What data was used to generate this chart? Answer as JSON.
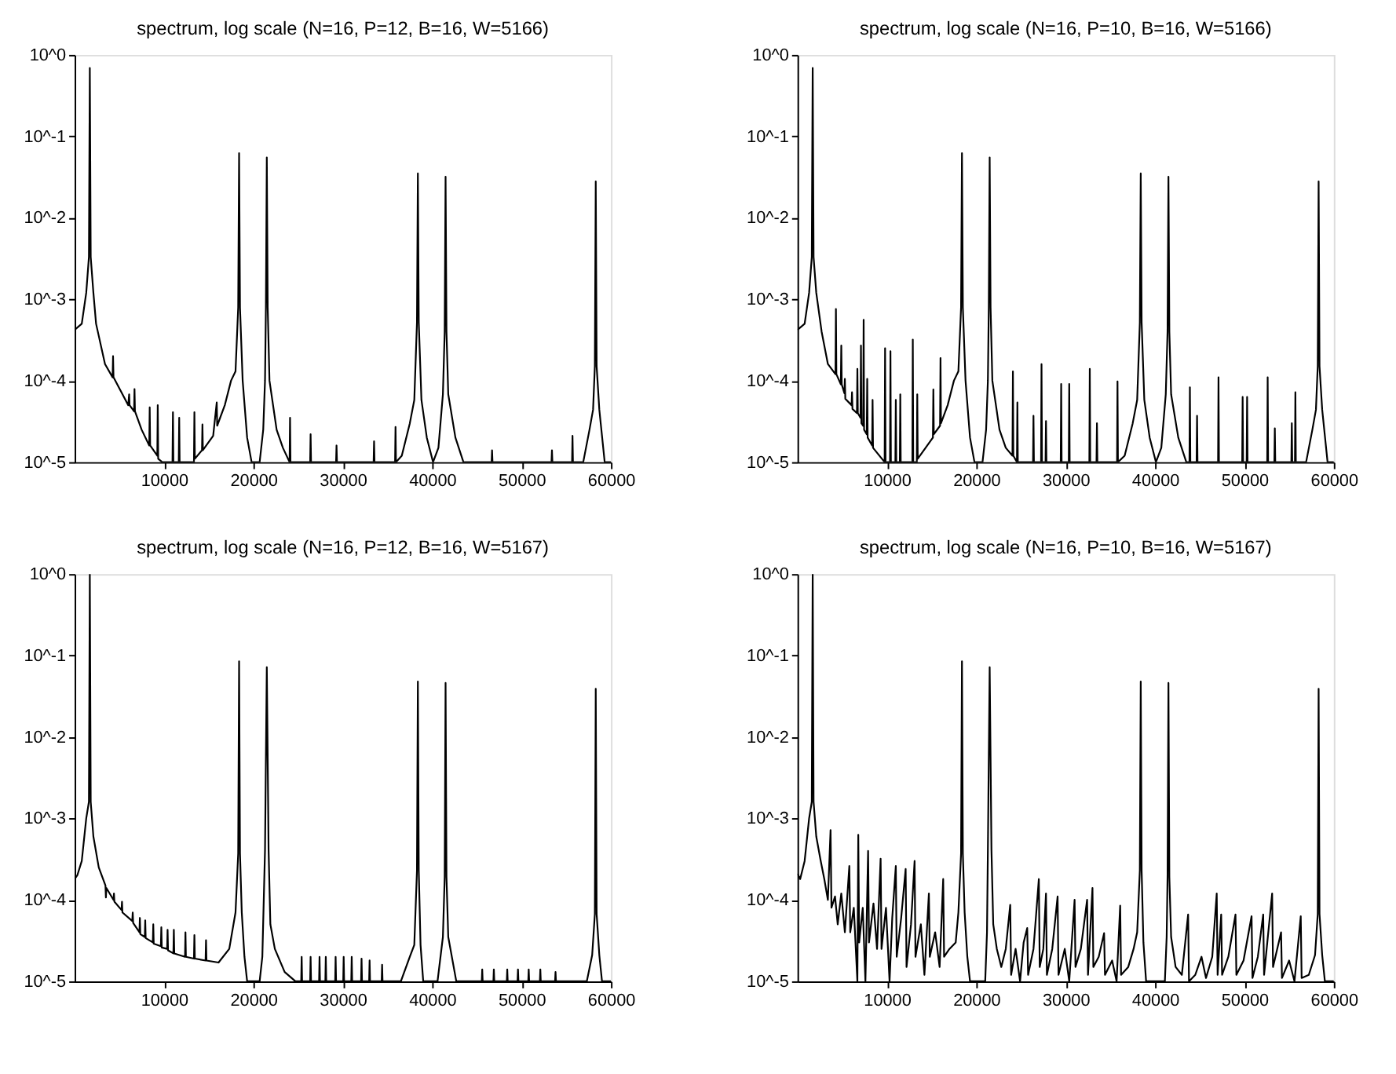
{
  "chart_data": [
    {
      "type": "line",
      "title": "spectrum, log scale (N=16, P=12, B=16, W=5166)",
      "color": "#000000",
      "log": "y",
      "grid": false,
      "line_style": "solid",
      "xlim": [
        0,
        60000
      ],
      "xticks": [
        10000,
        20000,
        30000,
        40000,
        50000,
        60000
      ],
      "ylim": [
        1e-05,
        1
      ],
      "yticks": [
        {
          "value": 1,
          "label": "10^0"
        },
        {
          "value": 0.1,
          "label": "10^-1"
        },
        {
          "value": 0.01,
          "label": "10^-2"
        },
        {
          "value": 0.001,
          "label": "10^-3"
        },
        {
          "value": 0.0001,
          "label": "10^-4"
        },
        {
          "value": 1e-05,
          "label": "10^-5"
        }
      ],
      "x": [
        0,
        800,
        1300,
        1600,
        1700,
        1800,
        2100,
        2400,
        3400,
        4250,
        4300,
        4350,
        6000,
        6100,
        6150,
        6650,
        6700,
        6750,
        7500,
        8350,
        8400,
        8450,
        9250,
        9300,
        9350,
        9800,
        10950,
        11000,
        11050,
        11650,
        11700,
        11750,
        13350,
        13400,
        13450,
        14250,
        14300,
        14350,
        15500,
        15900,
        15950,
        16800,
        17500,
        18000,
        18300,
        18400,
        18500,
        18800,
        19300,
        19800,
        20700,
        21100,
        21300,
        21400,
        21500,
        21600,
        21800,
        22600,
        23300,
        24050,
        24100,
        24150,
        26350,
        26400,
        26450,
        29250,
        29300,
        29350,
        33450,
        33500,
        33550,
        35850,
        35900,
        35950,
        36600,
        37500,
        38000,
        38300,
        38400,
        38500,
        38800,
        39400,
        40100,
        40700,
        41200,
        41400,
        41500,
        41600,
        41800,
        42600,
        43500,
        46650,
        46700,
        46750,
        53350,
        53400,
        53450,
        55650,
        55700,
        55750,
        56900,
        57600,
        58000,
        58200,
        58300,
        58400,
        58700,
        59300,
        60000
      ],
      "values": [
        0.00042,
        0.0005,
        0.0012,
        0.0033,
        0.69,
        0.0033,
        0.0012,
        0.0005,
        0.00016,
        0.00011,
        0.0002,
        0.00011,
        5e-05,
        6.8e-05,
        5e-05,
        4.2e-05,
        7.9e-05,
        4.2e-05,
        2.5e-05,
        1.6e-05,
        4.7e-05,
        1.6e-05,
        1.2e-05,
        5e-05,
        1.1e-05,
        1e-05,
        1e-05,
        4.1e-05,
        1e-05,
        1e-05,
        3.5e-05,
        1e-05,
        1e-05,
        4.1e-05,
        1.1e-05,
        1.4e-05,
        2.9e-05,
        1.4e-05,
        2.1e-05,
        5.4e-05,
        2.8e-05,
        5e-05,
        0.0001,
        0.00013,
        0.00079,
        0.062,
        0.00079,
        0.0001,
        2e-05,
        1e-05,
        1e-05,
        2.5e-05,
        0.0001,
        0.00079,
        0.055,
        0.00079,
        0.0001,
        2.5e-05,
        1.5e-05,
        1e-05,
        3.5e-05,
        1e-05,
        1e-05,
        2.2e-05,
        1e-05,
        1e-05,
        1.6e-05,
        1e-05,
        1e-05,
        1.8e-05,
        1e-05,
        1e-05,
        2.7e-05,
        1e-05,
        1.2e-05,
        3e-05,
        5.8e-05,
        0.00052,
        0.035,
        0.00052,
        5.8e-05,
        2e-05,
        1e-05,
        1.5e-05,
        6.8e-05,
        0.0004,
        0.032,
        0.0004,
        6.8e-05,
        2e-05,
        1e-05,
        1e-05,
        1.4e-05,
        1e-05,
        1e-05,
        1.4e-05,
        1e-05,
        1e-05,
        2.1e-05,
        1e-05,
        1e-05,
        2.5e-05,
        4.4e-05,
        0.00015,
        0.028,
        0.00015,
        4.4e-05,
        1e-05,
        1e-05
      ]
    },
    {
      "type": "line",
      "title": "spectrum, log scale (N=16, P=10, B=16, W=5166)",
      "color": "#000000",
      "log": "y",
      "grid": false,
      "line_style": "solid",
      "xlim": [
        0,
        60000
      ],
      "xticks": [
        10000,
        20000,
        30000,
        40000,
        50000,
        60000
      ],
      "ylim": [
        1e-05,
        1
      ],
      "yticks": [
        {
          "value": 1,
          "label": "10^0"
        },
        {
          "value": 0.1,
          "label": "10^-1"
        },
        {
          "value": 0.01,
          "label": "10^-2"
        },
        {
          "value": 0.001,
          "label": "10^-3"
        },
        {
          "value": 0.0001,
          "label": "10^-4"
        },
        {
          "value": 1e-05,
          "label": "10^-5"
        }
      ],
      "x": [
        0,
        800,
        1300,
        1600,
        1700,
        1800,
        2100,
        2700,
        3400,
        4250,
        4300,
        4350,
        4850,
        4900,
        4950,
        5250,
        5300,
        5350,
        6050,
        6100,
        6150,
        6650,
        6700,
        6750,
        7050,
        7100,
        7150,
        7350,
        7400,
        7450,
        7750,
        7800,
        7850,
        8350,
        8400,
        8450,
        9750,
        9800,
        9850,
        10350,
        10400,
        10450,
        10950,
        11000,
        11050,
        11450,
        11500,
        11550,
        12850,
        12900,
        12950,
        13350,
        13400,
        13450,
        15150,
        15200,
        15250,
        15950,
        16000,
        16050,
        16800,
        17500,
        18000,
        18300,
        18400,
        18500,
        18800,
        19300,
        19800,
        20700,
        21100,
        21300,
        21400,
        21500,
        21600,
        21800,
        22600,
        23300,
        24050,
        24100,
        24150,
        24550,
        24600,
        24650,
        26350,
        26400,
        26450,
        27250,
        27300,
        27350,
        27750,
        27800,
        27850,
        29450,
        29500,
        29550,
        30350,
        30400,
        30450,
        32650,
        32700,
        32750,
        33450,
        33500,
        33550,
        35750,
        35800,
        35850,
        36600,
        37500,
        38000,
        38300,
        38400,
        38500,
        38800,
        39400,
        40100,
        40700,
        41200,
        41400,
        41500,
        41600,
        41800,
        42600,
        43500,
        43850,
        43900,
        43950,
        44650,
        44700,
        44750,
        47050,
        47100,
        47150,
        49750,
        49800,
        49850,
        50250,
        50300,
        50350,
        52550,
        52600,
        52650,
        53350,
        53400,
        53450,
        55250,
        55300,
        55350,
        55650,
        55700,
        55750,
        56900,
        57600,
        58000,
        58200,
        58300,
        58400,
        58700,
        59300,
        60000
      ],
      "values": [
        0.00042,
        0.0005,
        0.0012,
        0.0033,
        0.69,
        0.0033,
        0.0012,
        0.0004,
        0.00016,
        0.00012,
        0.00076,
        0.00012,
        9e-05,
        0.00027,
        9e-05,
        7e-05,
        0.000105,
        6e-05,
        5e-05,
        7.2e-05,
        4.5e-05,
        4e-05,
        0.00014,
        4e-05,
        3.5e-05,
        0.00027,
        3e-05,
        2.8e-05,
        0.00056,
        2.5e-05,
        2.2e-05,
        0.000105,
        2e-05,
        1.6e-05,
        5.8e-05,
        1.5e-05,
        1e-05,
        0.00025,
        1e-05,
        1e-05,
        0.00023,
        1e-05,
        1e-05,
        5.8e-05,
        1e-05,
        1e-05,
        6.8e-05,
        1e-05,
        1e-05,
        0.00032,
        1e-05,
        1e-05,
        6.8e-05,
        1.1e-05,
        2e-05,
        7.8e-05,
        2.2e-05,
        2.8e-05,
        0.00019,
        3e-05,
        5e-05,
        0.0001,
        0.00013,
        0.00079,
        0.062,
        0.00079,
        0.0001,
        2e-05,
        1e-05,
        1e-05,
        2.5e-05,
        0.0001,
        0.00079,
        0.055,
        0.00079,
        0.0001,
        2.5e-05,
        1.5e-05,
        1.2e-05,
        0.00013,
        1.2e-05,
        1e-05,
        5.4e-05,
        1e-05,
        1e-05,
        3.7e-05,
        1e-05,
        1e-05,
        0.00016,
        1e-05,
        1e-05,
        3.2e-05,
        1e-05,
        1e-05,
        9.1e-05,
        1e-05,
        1e-05,
        9.1e-05,
        1e-05,
        1e-05,
        0.00014,
        1e-05,
        1e-05,
        3e-05,
        1e-05,
        1e-05,
        9.8e-05,
        1e-05,
        1.2e-05,
        3e-05,
        5.8e-05,
        0.00052,
        0.035,
        0.00052,
        5.8e-05,
        2e-05,
        1e-05,
        1.5e-05,
        6.8e-05,
        0.0004,
        0.032,
        0.0004,
        6.8e-05,
        2e-05,
        1e-05,
        1e-05,
        8.3e-05,
        1e-05,
        1e-05,
        3.7e-05,
        1e-05,
        1e-05,
        0.00011,
        1e-05,
        1e-05,
        6.3e-05,
        1e-05,
        1e-05,
        6.3e-05,
        1e-05,
        1e-05,
        0.00011,
        1e-05,
        1e-05,
        2.6e-05,
        1e-05,
        1e-05,
        3e-05,
        1e-05,
        1e-05,
        7.2e-05,
        1e-05,
        1e-05,
        2.5e-05,
        4.4e-05,
        0.00015,
        0.028,
        0.00015,
        4.4e-05,
        1e-05,
        1e-05
      ]
    },
    {
      "type": "line",
      "title": "spectrum, log scale (N=16, P=12, B=16, W=5167)",
      "color": "#000000",
      "log": "y",
      "grid": false,
      "line_style": "solid",
      "xlim": [
        0,
        60000
      ],
      "xticks": [
        10000,
        20000,
        30000,
        40000,
        50000,
        60000
      ],
      "ylim": [
        1e-05,
        1
      ],
      "yticks": [
        {
          "value": 1,
          "label": "10^0"
        },
        {
          "value": 0.1,
          "label": "10^-1"
        },
        {
          "value": 0.01,
          "label": "10^-2"
        },
        {
          "value": 0.001,
          "label": "10^-3"
        },
        {
          "value": 0.0001,
          "label": "10^-4"
        },
        {
          "value": 1e-05,
          "label": "10^-5"
        }
      ],
      "x": [
        0,
        300,
        800,
        1300,
        1600,
        1700,
        1800,
        2100,
        2700,
        3450,
        3500,
        3550,
        4350,
        4400,
        4450,
        5250,
        5300,
        5350,
        6450,
        6500,
        6550,
        7250,
        7300,
        7350,
        7850,
        7900,
        7950,
        8750,
        8800,
        8850,
        9650,
        9700,
        9750,
        10350,
        10400,
        10450,
        11050,
        11100,
        11150,
        12350,
        12400,
        12450,
        13350,
        13400,
        13450,
        14650,
        14700,
        14750,
        16100,
        17300,
        18000,
        18300,
        18400,
        18500,
        18700,
        19000,
        19300,
        20700,
        21000,
        21300,
        21500,
        21700,
        21900,
        22400,
        23500,
        24700,
        25350,
        25400,
        25450,
        26350,
        26400,
        26450,
        27350,
        27400,
        27450,
        28050,
        28100,
        28150,
        29150,
        29200,
        29250,
        30050,
        30100,
        30150,
        30950,
        31000,
        31050,
        32050,
        32100,
        32150,
        32950,
        33000,
        33050,
        34350,
        34400,
        34450,
        36500,
        37500,
        38000,
        38300,
        38400,
        38500,
        38700,
        39000,
        40600,
        41200,
        41400,
        41500,
        41600,
        41800,
        42700,
        45550,
        45600,
        45650,
        46850,
        46900,
        46950,
        48350,
        48400,
        48450,
        49550,
        49600,
        49650,
        50750,
        50800,
        50850,
        52050,
        52100,
        52150,
        53750,
        53800,
        53850,
        57300,
        57900,
        58200,
        58300,
        58400,
        58700,
        59000,
        60000
      ],
      "values": [
        0.00018,
        0.0002,
        0.0003,
        0.001,
        0.0016,
        1.0,
        0.0016,
        0.0006,
        0.00025,
        0.00015,
        0.000107,
        0.00014,
        0.0001,
        0.00012,
        9.5e-05,
        7.5e-05,
        9.5e-05,
        7e-05,
        5.5e-05,
        7e-05,
        5.2e-05,
        4e-05,
        6e-05,
        3.8e-05,
        3.5e-05,
        5.6e-05,
        3.4e-05,
        3e-05,
        5e-05,
        2.9e-05,
        2.7e-05,
        4.6e-05,
        2.6e-05,
        2.5e-05,
        4.3e-05,
        2.4e-05,
        2.2e-05,
        4.3e-05,
        2.2e-05,
        2e-05,
        4e-05,
        2e-05,
        1.9e-05,
        3.7e-05,
        1.9e-05,
        1.8e-05,
        3.2e-05,
        1.8e-05,
        1.7e-05,
        2.5e-05,
        7e-05,
        0.00037,
        0.085,
        0.00037,
        7e-05,
        2e-05,
        1e-05,
        1e-05,
        2e-05,
        0.00041,
        0.072,
        0.00041,
        5e-05,
        2.5e-05,
        1.3e-05,
        1e-05,
        1e-05,
        2e-05,
        1e-05,
        1e-05,
        2e-05,
        1e-05,
        1e-05,
        2e-05,
        1e-05,
        1e-05,
        2e-05,
        1e-05,
        1e-05,
        2e-05,
        1e-05,
        1e-05,
        2e-05,
        1e-05,
        1e-05,
        2e-05,
        1e-05,
        1e-05,
        1.9e-05,
        1e-05,
        1e-05,
        1.8e-05,
        1e-05,
        1e-05,
        1.6e-05,
        1e-05,
        1e-05,
        2e-05,
        2.8e-05,
        0.00023,
        0.048,
        0.00023,
        2.8e-05,
        1e-05,
        1e-05,
        3.5e-05,
        0.00019,
        0.046,
        0.00019,
        3.5e-05,
        1e-05,
        1e-05,
        1.4e-05,
        1e-05,
        1e-05,
        1.4e-05,
        1e-05,
        1e-05,
        1.4e-05,
        1e-05,
        1e-05,
        1.4e-05,
        1e-05,
        1e-05,
        1.4e-05,
        1e-05,
        1e-05,
        1.4e-05,
        1e-05,
        1e-05,
        1.3e-05,
        1e-05,
        1e-05,
        2.1e-05,
        6.7e-05,
        0.039,
        6.7e-05,
        2.1e-05,
        1e-05,
        1e-05
      ]
    },
    {
      "type": "line",
      "title": "spectrum, log scale (N=16, P=10, B=16, W=5167)",
      "color": "#000000",
      "log": "y",
      "grid": false,
      "line_style": "solid",
      "xlim": [
        0,
        60000
      ],
      "xticks": [
        10000,
        20000,
        30000,
        40000,
        50000,
        60000
      ],
      "ylim": [
        1e-05,
        1
      ],
      "yticks": [
        {
          "value": 1,
          "label": "10^0"
        },
        {
          "value": 0.1,
          "label": "10^-1"
        },
        {
          "value": 0.01,
          "label": "10^-2"
        },
        {
          "value": 0.001,
          "label": "10^-3"
        },
        {
          "value": 0.0001,
          "label": "10^-4"
        },
        {
          "value": 1e-05,
          "label": "10^-5"
        }
      ],
      "x": [
        0,
        300,
        800,
        1300,
        1600,
        1700,
        1800,
        2100,
        2600,
        3000,
        3400,
        3700,
        3800,
        4200,
        4500,
        4900,
        5300,
        5800,
        5900,
        6300,
        6700,
        6800,
        6900,
        7300,
        7600,
        7900,
        8000,
        8500,
        8900,
        9300,
        9400,
        9900,
        10300,
        10600,
        11000,
        11100,
        11600,
        12100,
        12200,
        12700,
        13100,
        13200,
        13800,
        14200,
        14700,
        14800,
        15400,
        15900,
        16300,
        16400,
        17000,
        17700,
        18000,
        18300,
        18400,
        18500,
        18700,
        19000,
        19300,
        21000,
        21200,
        21300,
        21500,
        21700,
        21900,
        22300,
        22800,
        23300,
        23800,
        23900,
        24400,
        24900,
        25300,
        25700,
        25800,
        26400,
        27000,
        27100,
        27500,
        27800,
        27900,
        28500,
        29100,
        29200,
        29900,
        30400,
        31000,
        31100,
        31700,
        32400,
        32500,
        33000,
        33100,
        33700,
        34300,
        34400,
        35200,
        35700,
        36100,
        36200,
        37000,
        37600,
        38000,
        38300,
        38400,
        38500,
        38700,
        39000,
        41100,
        41300,
        41400,
        41500,
        41600,
        41800,
        42300,
        43000,
        43700,
        43800,
        44500,
        45200,
        45700,
        46400,
        46900,
        47000,
        47400,
        47500,
        48200,
        49000,
        49100,
        49900,
        50800,
        50900,
        51500,
        52100,
        52200,
        53100,
        53200,
        54100,
        54200,
        55000,
        55600,
        56300,
        56400,
        57200,
        57900,
        58200,
        58300,
        58400,
        58700,
        59000,
        60000
      ],
      "values": [
        0.00021,
        0.00018,
        0.0003,
        0.001,
        0.0016,
        1.0,
        0.0016,
        0.0006,
        0.0003,
        0.00018,
        0.0001,
        0.00072,
        8e-05,
        0.00011,
        5e-05,
        0.00012,
        4e-05,
        0.00026,
        4e-05,
        8e-05,
        1e-05,
        0.00063,
        3e-05,
        8e-05,
        1e-05,
        0.0004,
        3e-05,
        9e-05,
        2.5e-05,
        0.00032,
        2.5e-05,
        8e-05,
        1e-05,
        6e-05,
        0.00026,
        2e-05,
        6e-05,
        0.00024,
        1.5e-05,
        5e-05,
        0.0003,
        2e-05,
        5e-05,
        1.2e-05,
        0.00012,
        2e-05,
        4e-05,
        1.5e-05,
        0.00018,
        2e-05,
        2.5e-05,
        3e-05,
        7e-05,
        0.00037,
        0.085,
        0.00037,
        7e-05,
        2e-05,
        1e-05,
        1e-05,
        4e-05,
        0.00041,
        0.072,
        0.00041,
        5e-05,
        2.5e-05,
        1.5e-05,
        2.5e-05,
        8.7e-05,
        1.2e-05,
        2.5e-05,
        1e-05,
        3e-05,
        4.5e-05,
        1.2e-05,
        2.5e-05,
        0.00018,
        1.5e-05,
        2.5e-05,
        0.00012,
        1.2e-05,
        2.5e-05,
        0.00011,
        1.2e-05,
        2.5e-05,
        1e-05,
        0.0001,
        1.5e-05,
        2.5e-05,
        0.0001,
        1.2e-05,
        0.00014,
        1.5e-05,
        2e-05,
        3.9e-05,
        1.2e-05,
        1.8e-05,
        1e-05,
        8.5e-05,
        1.2e-05,
        1.5e-05,
        2.5e-05,
        4e-05,
        0.00023,
        0.048,
        0.00023,
        3e-05,
        1e-05,
        1e-05,
        3.5e-05,
        0.00019,
        0.046,
        0.00019,
        3.5e-05,
        1.5e-05,
        1.2e-05,
        6.6e-05,
        1e-05,
        1.2e-05,
        2e-05,
        1.1e-05,
        2e-05,
        0.00012,
        1.2e-05,
        6.6e-05,
        1.2e-05,
        2e-05,
        6.6e-05,
        1.2e-05,
        1.8e-05,
        6.3e-05,
        1.1e-05,
        2e-05,
        6.6e-05,
        1.2e-05,
        0.00012,
        1.5e-05,
        4e-05,
        1.1e-05,
        1.8e-05,
        1e-05,
        6.3e-05,
        1.1e-05,
        1.2e-05,
        2.1e-05,
        6.7e-05,
        0.039,
        6.7e-05,
        2.1e-05,
        1e-05,
        1e-05
      ]
    }
  ]
}
